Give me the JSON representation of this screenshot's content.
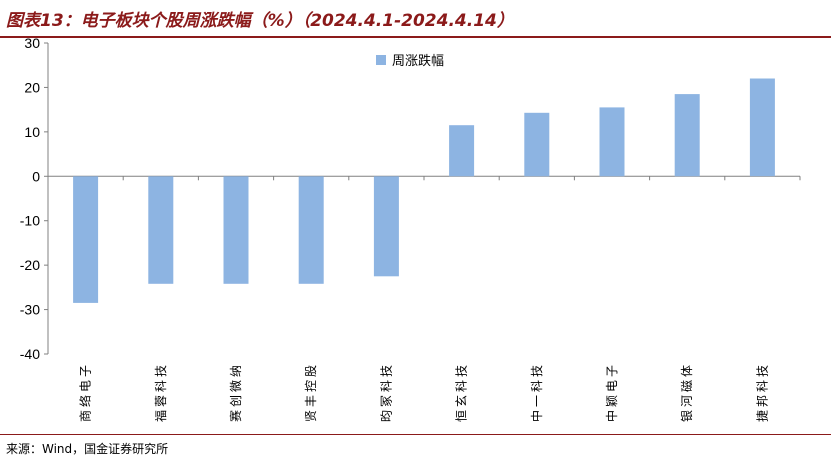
{
  "header": {
    "title": "图表13：电子板块个股周涨跌幅（%）（2024.4.1-2024.4.14）"
  },
  "footer": {
    "source": "来源：Wind，国金证券研究所"
  },
  "colors": {
    "bar": "#8DB4E2",
    "accent": "#8B1A1A",
    "axis": "#808080"
  },
  "chart_data": {
    "type": "bar",
    "title": "",
    "xlabel": "",
    "ylabel": "",
    "categories": [
      "商络电子",
      "福蓉科技",
      "赛创微纳",
      "贤丰控股",
      "昀冢科技",
      "恒玄科技",
      "中一科技",
      "中颖电子",
      "银河磁体",
      "捷邦科技"
    ],
    "series": [
      {
        "name": "周涨跌幅",
        "values": [
          -28.5,
          -24.2,
          -24.2,
          -24.2,
          -22.5,
          11.5,
          14.3,
          15.5,
          18.5,
          22.0
        ]
      }
    ],
    "ylim": [
      -40,
      30
    ],
    "yticks": [
      30,
      20,
      10,
      0,
      -10,
      -20,
      -30,
      -40
    ],
    "grid": false,
    "legend_position": "top-center"
  }
}
